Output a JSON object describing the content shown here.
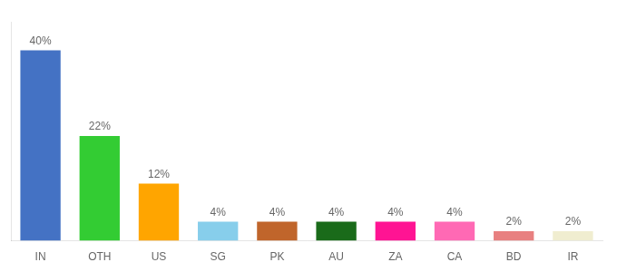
{
  "chart_data": {
    "type": "bar",
    "categories": [
      "IN",
      "OTH",
      "US",
      "SG",
      "PK",
      "AU",
      "ZA",
      "CA",
      "BD",
      "IR"
    ],
    "values": [
      40,
      22,
      12,
      4,
      4,
      4,
      4,
      4,
      2,
      2
    ],
    "value_labels": [
      "40%",
      "22%",
      "12%",
      "4%",
      "4%",
      "4%",
      "4%",
      "4%",
      "2%",
      "2%"
    ],
    "colors": [
      "#4472C4",
      "#33CC33",
      "#FFA500",
      "#87CEEB",
      "#C0652B",
      "#1A6B1A",
      "#FF1493",
      "#FF69B4",
      "#E88080",
      "#F0EDD0"
    ],
    "ylim": [
      0,
      46
    ],
    "grid": false,
    "data_labels": true,
    "tick_labels": "x"
  }
}
